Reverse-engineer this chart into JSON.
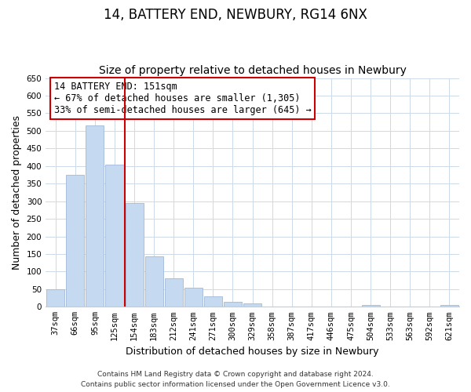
{
  "title": "14, BATTERY END, NEWBURY, RG14 6NX",
  "subtitle": "Size of property relative to detached houses in Newbury",
  "xlabel": "Distribution of detached houses by size in Newbury",
  "ylabel": "Number of detached properties",
  "bar_labels": [
    "37sqm",
    "66sqm",
    "95sqm",
    "125sqm",
    "154sqm",
    "183sqm",
    "212sqm",
    "241sqm",
    "271sqm",
    "300sqm",
    "329sqm",
    "358sqm",
    "387sqm",
    "417sqm",
    "446sqm",
    "475sqm",
    "504sqm",
    "533sqm",
    "563sqm",
    "592sqm",
    "621sqm"
  ],
  "bar_values": [
    50,
    375,
    515,
    405,
    295,
    143,
    82,
    55,
    30,
    13,
    10,
    0,
    0,
    0,
    0,
    0,
    5,
    0,
    0,
    0,
    5
  ],
  "bar_color": "#c5d9f0",
  "bar_edge_color": "#a0b8d8",
  "vline_x_index": 4,
  "vline_color": "#cc0000",
  "annotation_text_line1": "14 BATTERY END: 151sqm",
  "annotation_text_line2": "← 67% of detached houses are smaller (1,305)",
  "annotation_text_line3": "33% of semi-detached houses are larger (645) →",
  "ylim": [
    0,
    650
  ],
  "yticks": [
    0,
    50,
    100,
    150,
    200,
    250,
    300,
    350,
    400,
    450,
    500,
    550,
    600,
    650
  ],
  "footer_line1": "Contains HM Land Registry data © Crown copyright and database right 2024.",
  "footer_line2": "Contains public sector information licensed under the Open Government Licence v3.0.",
  "bg_color": "#ffffff",
  "grid_color": "#ccd9e8",
  "title_fontsize": 12,
  "subtitle_fontsize": 10,
  "axis_label_fontsize": 9,
  "tick_fontsize": 7.5,
  "annotation_fontsize": 8.5,
  "footer_fontsize": 6.5
}
